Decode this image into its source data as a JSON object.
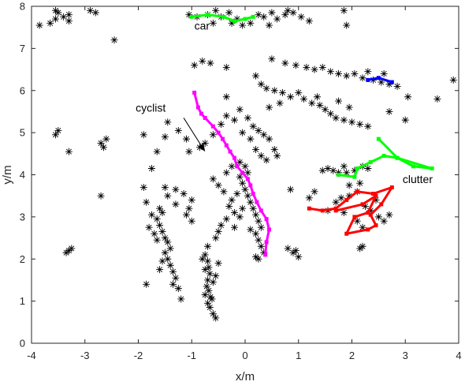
{
  "chart_data": {
    "type": "scatter",
    "title": "",
    "xlabel": "x/m",
    "ylabel": "y/m",
    "xlim": [
      -4,
      4
    ],
    "ylim": [
      0,
      8
    ],
    "xticks": [
      -4,
      -3,
      -2,
      -1,
      0,
      1,
      2,
      3,
      4
    ],
    "yticks": [
      0,
      1,
      2,
      3,
      4,
      5,
      6,
      7,
      8
    ],
    "grid": false,
    "marker": "asterisk",
    "marker_color": "#000000",
    "annotations": [
      {
        "text": "car",
        "x": -0.95,
        "y": 7.45
      },
      {
        "text": "cyclist",
        "x": -2.05,
        "y": 5.5
      },
      {
        "text": "clutter",
        "x": 2.95,
        "y": 3.8
      }
    ],
    "arrow": {
      "from": [
        -1.15,
        5.35
      ],
      "to": [
        -0.75,
        4.55
      ]
    },
    "tracks": [
      {
        "color": "#00ff00",
        "points": [
          [
            -1.0,
            7.75
          ],
          [
            -0.7,
            7.8
          ],
          [
            -0.4,
            7.75
          ],
          [
            -0.2,
            7.65
          ],
          [
            0.0,
            7.7
          ],
          [
            0.15,
            7.75
          ]
        ]
      },
      {
        "color": "#0000ff",
        "points": [
          [
            2.3,
            6.25
          ],
          [
            2.5,
            6.3
          ],
          [
            2.75,
            6.2
          ]
        ]
      },
      {
        "color": "#ff00ff",
        "points": [
          [
            -0.95,
            5.95
          ],
          [
            -0.88,
            5.6
          ],
          [
            -0.82,
            5.45
          ],
          [
            -0.75,
            5.35
          ],
          [
            -0.6,
            5.15
          ],
          [
            -0.5,
            5.0
          ],
          [
            -0.42,
            4.85
          ],
          [
            -0.35,
            4.7
          ],
          [
            -0.28,
            4.55
          ],
          [
            -0.2,
            4.4
          ],
          [
            -0.15,
            4.2
          ],
          [
            -0.05,
            4.05
          ],
          [
            0.05,
            3.9
          ],
          [
            0.1,
            3.75
          ],
          [
            0.15,
            3.55
          ],
          [
            0.22,
            3.35
          ],
          [
            0.3,
            3.15
          ],
          [
            0.4,
            2.95
          ],
          [
            0.45,
            2.7
          ],
          [
            0.4,
            2.4
          ],
          [
            0.38,
            2.1
          ]
        ]
      },
      {
        "color": "#00ff00",
        "points": [
          [
            1.75,
            4.0
          ],
          [
            2.05,
            3.95
          ],
          [
            2.1,
            4.15
          ],
          [
            2.35,
            4.3
          ],
          [
            2.6,
            4.45
          ],
          [
            2.85,
            4.4
          ],
          [
            3.15,
            4.2
          ],
          [
            3.5,
            4.15
          ],
          [
            2.85,
            4.4
          ],
          [
            2.5,
            4.85
          ]
        ]
      },
      {
        "color": "#ff0000",
        "points": [
          [
            1.2,
            3.2
          ],
          [
            1.45,
            3.15
          ],
          [
            1.7,
            3.2
          ],
          [
            1.9,
            3.4
          ],
          [
            2.1,
            3.6
          ],
          [
            2.4,
            3.55
          ],
          [
            2.75,
            3.7
          ],
          [
            2.55,
            3.3
          ],
          [
            2.35,
            3.05
          ],
          [
            2.45,
            2.8
          ],
          [
            2.3,
            2.7
          ],
          [
            1.9,
            2.6
          ],
          [
            2.05,
            3.0
          ],
          [
            2.3,
            3.1
          ],
          [
            2.45,
            3.5
          ],
          [
            2.2,
            3.3
          ],
          [
            1.7,
            3.15
          ]
        ]
      }
    ],
    "clutter_points": [
      [
        -3.65,
        7.6
      ],
      [
        -3.55,
        7.7
      ],
      [
        -3.5,
        7.85
      ],
      [
        -3.4,
        7.75
      ],
      [
        -3.3,
        7.8
      ],
      [
        -3.85,
        7.55
      ],
      [
        -2.9,
        7.9
      ],
      [
        -2.8,
        7.85
      ],
      [
        -2.45,
        7.2
      ],
      [
        -3.55,
        7.9
      ],
      [
        -3.3,
        7.65
      ],
      [
        -1.05,
        7.8
      ],
      [
        -0.9,
        7.75
      ],
      [
        -0.7,
        7.8
      ],
      [
        -0.55,
        7.9
      ],
      [
        -0.45,
        7.75
      ],
      [
        -0.3,
        7.85
      ],
      [
        -0.25,
        7.6
      ],
      [
        -0.15,
        7.7
      ],
      [
        -0.05,
        7.55
      ],
      [
        0.1,
        7.6
      ],
      [
        0.25,
        7.8
      ],
      [
        0.35,
        7.75
      ],
      [
        0.5,
        7.85
      ],
      [
        0.6,
        7.7
      ],
      [
        0.75,
        7.8
      ],
      [
        0.9,
        7.85
      ],
      [
        1.05,
        7.75
      ],
      [
        1.2,
        7.65
      ],
      [
        0.45,
        7.55
      ],
      [
        1.9,
        7.55
      ],
      [
        1.85,
        7.9
      ],
      [
        -0.6,
        7.6
      ],
      [
        0.8,
        7.9
      ],
      [
        0.5,
        6.75
      ],
      [
        0.75,
        6.65
      ],
      [
        0.95,
        6.6
      ],
      [
        1.15,
        6.55
      ],
      [
        1.3,
        6.5
      ],
      [
        1.45,
        6.55
      ],
      [
        1.6,
        6.45
      ],
      [
        1.75,
        6.4
      ],
      [
        1.9,
        6.35
      ],
      [
        2.05,
        6.4
      ],
      [
        2.2,
        6.3
      ],
      [
        2.4,
        6.25
      ],
      [
        2.55,
        6.2
      ],
      [
        2.7,
        6.15
      ],
      [
        2.85,
        6.1
      ],
      [
        2.3,
        6.45
      ],
      [
        2.6,
        6.4
      ],
      [
        3.05,
        5.85
      ],
      [
        3.6,
        5.8
      ],
      [
        3.9,
        6.25
      ],
      [
        -0.95,
        6.6
      ],
      [
        -0.8,
        6.7
      ],
      [
        -0.65,
        6.65
      ],
      [
        -0.35,
        6.55
      ],
      [
        0.2,
        6.35
      ],
      [
        0.3,
        6.15
      ],
      [
        0.4,
        6.05
      ],
      [
        0.55,
        6.0
      ],
      [
        0.7,
        5.95
      ],
      [
        0.85,
        5.85
      ],
      [
        1.0,
        5.95
      ],
      [
        1.1,
        5.8
      ],
      [
        1.25,
        5.7
      ],
      [
        1.4,
        5.65
      ],
      [
        1.5,
        5.55
      ],
      [
        1.6,
        5.45
      ],
      [
        1.7,
        5.35
      ],
      [
        1.85,
        5.3
      ],
      [
        2.0,
        5.25
      ],
      [
        2.15,
        5.2
      ],
      [
        2.3,
        5.15
      ],
      [
        1.95,
        5.6
      ],
      [
        1.75,
        5.75
      ],
      [
        1.35,
        5.85
      ],
      [
        0.65,
        5.7
      ],
      [
        0.45,
        5.6
      ],
      [
        -0.35,
        5.85
      ],
      [
        2.7,
        5.5
      ],
      [
        3.0,
        5.3
      ],
      [
        -0.1,
        5.55
      ],
      [
        0.05,
        5.35
      ],
      [
        0.15,
        5.15
      ],
      [
        0.25,
        5.05
      ],
      [
        0.35,
        4.95
      ],
      [
        0.45,
        4.85
      ],
      [
        0.1,
        4.85
      ],
      [
        -0.05,
        5.0
      ],
      [
        0.2,
        4.6
      ],
      [
        0.3,
        4.45
      ],
      [
        0.4,
        4.35
      ],
      [
        0.55,
        4.6
      ],
      [
        0.6,
        4.45
      ],
      [
        -0.35,
        5.4
      ],
      [
        -0.2,
        5.3
      ],
      [
        -0.45,
        5.2
      ],
      [
        -0.6,
        4.95
      ],
      [
        -0.75,
        4.75
      ],
      [
        -0.85,
        4.65
      ],
      [
        -1.05,
        4.55
      ],
      [
        -1.1,
        4.85
      ],
      [
        -1.25,
        5.05
      ],
      [
        -1.45,
        5.25
      ],
      [
        -1.5,
        4.9
      ],
      [
        -1.65,
        4.55
      ],
      [
        -1.75,
        4.15
      ],
      [
        -1.9,
        4.95
      ],
      [
        -2.7,
        4.75
      ],
      [
        -2.65,
        4.65
      ],
      [
        -2.6,
        4.85
      ],
      [
        -3.3,
        4.55
      ],
      [
        -3.55,
        4.95
      ],
      [
        -3.5,
        5.05
      ],
      [
        -2.7,
        3.5
      ],
      [
        -3.35,
        2.15
      ],
      [
        -3.3,
        2.2
      ],
      [
        -3.25,
        2.25
      ],
      [
        -1.9,
        3.7
      ],
      [
        -1.85,
        3.35
      ],
      [
        1.45,
        4.1
      ],
      [
        1.55,
        4.15
      ],
      [
        1.65,
        4.1
      ],
      [
        1.75,
        4.05
      ],
      [
        1.85,
        4.2
      ],
      [
        1.9,
        4.05
      ],
      [
        2.05,
        4.1
      ],
      [
        2.2,
        4.2
      ],
      [
        2.3,
        4.15
      ],
      [
        1.95,
        3.75
      ],
      [
        2.15,
        3.8
      ],
      [
        2.1,
        3.6
      ],
      [
        1.7,
        3.35
      ],
      [
        1.8,
        3.45
      ],
      [
        1.95,
        3.5
      ],
      [
        2.25,
        3.25
      ],
      [
        2.35,
        3.15
      ],
      [
        2.45,
        3.4
      ],
      [
        2.5,
        3.0
      ],
      [
        2.6,
        2.9
      ],
      [
        2.7,
        3.05
      ],
      [
        2.1,
        2.9
      ],
      [
        2.2,
        2.75
      ],
      [
        1.85,
        3.1
      ],
      [
        1.55,
        3.15
      ],
      [
        2.15,
        2.25
      ],
      [
        2.2,
        2.3
      ],
      [
        1.3,
        3.6
      ],
      [
        1.2,
        3.45
      ],
      [
        0.85,
        3.65
      ],
      [
        0.8,
        2.25
      ],
      [
        0.9,
        2.15
      ],
      [
        0.95,
        2.2
      ],
      [
        1.0,
        2.05
      ],
      [
        -0.1,
        3.95
      ],
      [
        -0.05,
        3.8
      ],
      [
        0.0,
        3.65
      ],
      [
        0.05,
        3.5
      ],
      [
        0.1,
        3.35
      ],
      [
        -0.15,
        3.55
      ],
      [
        -0.25,
        3.4
      ],
      [
        -0.3,
        3.25
      ],
      [
        -0.2,
        3.1
      ],
      [
        0.15,
        3.2
      ],
      [
        0.2,
        3.05
      ],
      [
        0.25,
        2.9
      ],
      [
        0.3,
        2.75
      ],
      [
        0.2,
        2.6
      ],
      [
        0.25,
        2.45
      ],
      [
        0.3,
        2.3
      ],
      [
        0.35,
        2.15
      ],
      [
        0.2,
        2.05
      ],
      [
        0.25,
        2.0
      ],
      [
        -0.05,
        3.2
      ],
      [
        -0.1,
        3.0
      ],
      [
        -0.35,
        2.95
      ],
      [
        -0.45,
        2.8
      ],
      [
        -0.5,
        2.65
      ],
      [
        -0.55,
        2.5
      ],
      [
        -0.4,
        3.6
      ],
      [
        -0.5,
        3.75
      ],
      [
        -0.6,
        3.9
      ],
      [
        -0.35,
        4.05
      ],
      [
        -0.25,
        4.2
      ],
      [
        -0.1,
        4.3
      ],
      [
        0.0,
        4.2
      ],
      [
        0.05,
        4.05
      ],
      [
        -0.7,
        2.3
      ],
      [
        -0.75,
        2.1
      ],
      [
        -0.2,
        2.75
      ],
      [
        0.1,
        2.7
      ],
      [
        -1.3,
        3.65
      ],
      [
        -1.15,
        3.55
      ],
      [
        -1.0,
        3.4
      ],
      [
        -1.05,
        3.2
      ],
      [
        -1.1,
        3.05
      ],
      [
        -1.0,
        2.9
      ],
      [
        -1.3,
        3.3
      ],
      [
        -1.45,
        3.5
      ],
      [
        -1.5,
        3.7
      ],
      [
        -1.6,
        3.2
      ],
      [
        -1.55,
        3.1
      ],
      [
        -1.65,
        2.95
      ],
      [
        -1.6,
        2.8
      ],
      [
        -1.55,
        2.65
      ],
      [
        -1.5,
        2.5
      ],
      [
        -1.45,
        2.4
      ],
      [
        -1.4,
        2.25
      ],
      [
        -1.5,
        2.15
      ],
      [
        -1.45,
        2.0
      ],
      [
        -1.4,
        1.85
      ],
      [
        -1.35,
        1.7
      ],
      [
        -1.3,
        1.55
      ],
      [
        -1.35,
        1.4
      ],
      [
        -1.25,
        1.3
      ],
      [
        -1.75,
        3.05
      ],
      [
        -1.8,
        2.75
      ],
      [
        -1.7,
        2.6
      ],
      [
        -1.65,
        2.45
      ],
      [
        -1.55,
        1.95
      ],
      [
        -1.6,
        1.75
      ],
      [
        -1.85,
        1.4
      ],
      [
        -1.2,
        1.05
      ],
      [
        -0.7,
        1.95
      ],
      [
        -0.68,
        1.8
      ],
      [
        -0.66,
        1.65
      ],
      [
        -0.7,
        1.5
      ],
      [
        -0.72,
        1.35
      ],
      [
        -0.68,
        1.25
      ],
      [
        -0.65,
        1.1
      ],
      [
        -0.7,
        0.95
      ],
      [
        -0.66,
        0.85
      ],
      [
        -0.6,
        0.7
      ],
      [
        -0.55,
        0.6
      ],
      [
        -0.62,
        1.05
      ],
      [
        -0.75,
        1.15
      ],
      [
        -0.6,
        1.45
      ],
      [
        -0.55,
        1.6
      ],
      [
        -0.75,
        1.75
      ],
      [
        -0.8,
        2.0
      ],
      [
        -0.5,
        1.9
      ]
    ]
  }
}
